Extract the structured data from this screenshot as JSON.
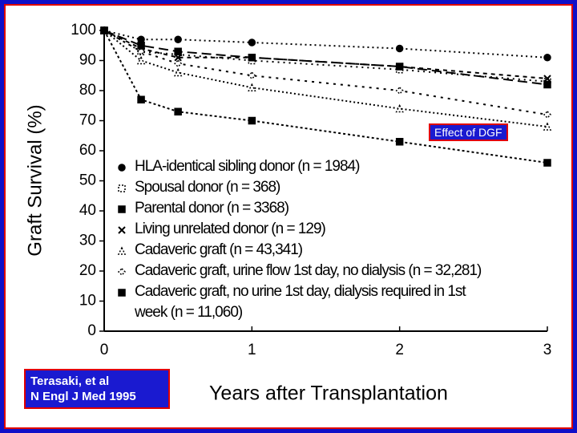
{
  "chart_data": {
    "type": "line",
    "y_label": "Graft Survival (%)",
    "x_label": "Years after Transplantation",
    "annotation": "Effect of DGF",
    "source": [
      "Terasaki, et al",
      "N Engl J Med 1995"
    ],
    "x": [
      0,
      0.25,
      0.5,
      1,
      2,
      3
    ],
    "xlim": [
      0,
      3
    ],
    "xticks": [
      0,
      1,
      2,
      3
    ],
    "ylim": [
      0,
      100
    ],
    "yticks": [
      0,
      10,
      20,
      30,
      40,
      50,
      60,
      70,
      80,
      90,
      100
    ],
    "series": [
      {
        "name": "HLA-identical sibling donor (n = 1984)",
        "color": "#000000",
        "marker": "circle",
        "dash": "2,4",
        "values": [
          100,
          97,
          97,
          96,
          94,
          91
        ]
      },
      {
        "name": "Spousal donor (n = 368)",
        "color": "#000000",
        "marker": "square-open",
        "dash": "2,5",
        "values": [
          100,
          93,
          92,
          90,
          87,
          83
        ]
      },
      {
        "name": "Parental donor (n = 3368)",
        "color": "#000000",
        "marker": "square",
        "dash": "12,6",
        "values": [
          100,
          95,
          93,
          91,
          88,
          82
        ]
      },
      {
        "name": "Living unrelated donor (n = 129)",
        "color": "#000000",
        "marker": "x",
        "dash": "5,5",
        "values": [
          100,
          94,
          91,
          91,
          88,
          84
        ]
      },
      {
        "name": "Cadaveric graft (n = 43,341)",
        "color": "#000000",
        "marker": "triangle-open",
        "dash": "2,3",
        "values": [
          100,
          90,
          86,
          81,
          74,
          68
        ]
      },
      {
        "name": "Cadaveric graft, urine flow 1st day, no dialysis (n = 32,281)",
        "color": "#000000",
        "marker": "diamond-open",
        "dash": "3,6",
        "values": [
          100,
          93,
          89,
          85,
          80,
          72
        ]
      },
      {
        "name": "Cadaveric graft, no urine 1st day, dialysis required in 1st week (n = 11,060)",
        "color": "#000000",
        "marker": "square",
        "dash": "3,3",
        "values": [
          100,
          77,
          73,
          70,
          63,
          56
        ]
      }
    ]
  }
}
